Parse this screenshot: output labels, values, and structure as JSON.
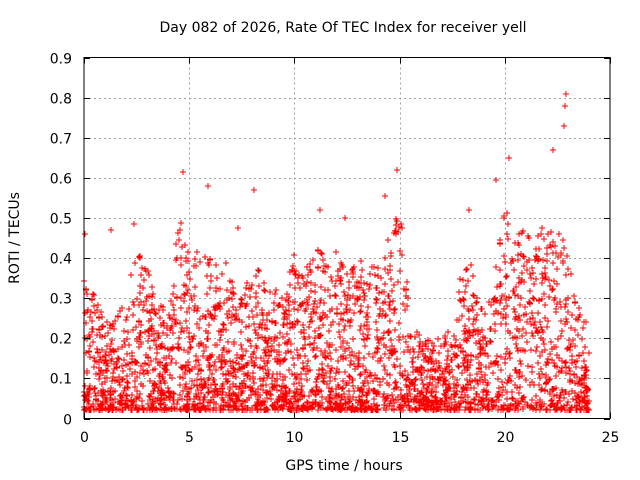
{
  "chart_data": {
    "type": "scatter",
    "title": "Day 082 of 2026, Rate Of TEC Index for receiver yell",
    "xlabel": "GPS time / hours",
    "ylabel": "ROTI / TECUs",
    "xlim": [
      0,
      25
    ],
    "ylim": [
      0,
      0.9
    ],
    "xticks": [
      0,
      5,
      10,
      15,
      20,
      25
    ],
    "yticks": [
      0,
      0.1,
      0.2,
      0.3,
      0.4,
      0.5,
      0.6,
      0.7,
      0.8,
      0.9
    ],
    "xtick_labels": [
      "0",
      "5",
      "10",
      "15",
      "20",
      "25"
    ],
    "ytick_labels": [
      "0",
      "0.1",
      "0.2",
      "0.3",
      "0.4",
      "0.5",
      "0.6",
      "0.7",
      "0.8",
      "0.9"
    ],
    "grid": true,
    "marker": "+",
    "series": [
      {
        "name": "ROTI",
        "color": "#ff0000",
        "envelope": {
          "hours": [
            0,
            0.5,
            1,
            1.5,
            2,
            2.5,
            3,
            3.5,
            4,
            4.5,
            5,
            5.5,
            6,
            6.5,
            7,
            7.5,
            8,
            8.5,
            9,
            9.5,
            10,
            10.5,
            11,
            11.5,
            12,
            12.5,
            13,
            13.5,
            14,
            14.5,
            15,
            15.5,
            16,
            16.5,
            17,
            17.5,
            18,
            18.5,
            19,
            19.5,
            20,
            20.5,
            21,
            21.5,
            22,
            22.5,
            23,
            23.5,
            24
          ],
          "upper_roti": [
            0.38,
            0.3,
            0.26,
            0.28,
            0.3,
            0.42,
            0.38,
            0.33,
            0.25,
            0.5,
            0.45,
            0.42,
            0.4,
            0.38,
            0.4,
            0.3,
            0.41,
            0.35,
            0.33,
            0.3,
            0.42,
            0.38,
            0.45,
            0.4,
            0.43,
            0.37,
            0.39,
            0.4,
            0.38,
            0.46,
            0.55,
            0.25,
            0.2,
            0.2,
            0.2,
            0.24,
            0.4,
            0.38,
            0.25,
            0.35,
            0.55,
            0.45,
            0.48,
            0.45,
            0.5,
            0.48,
            0.42,
            0.3,
            0.22
          ]
        },
        "outliers": [
          {
            "x": 4.7,
            "y": 0.615
          },
          {
            "x": 5.9,
            "y": 0.58
          },
          {
            "x": 8.1,
            "y": 0.57
          },
          {
            "x": 20.2,
            "y": 0.65
          },
          {
            "x": 22.3,
            "y": 0.67
          },
          {
            "x": 22.9,
            "y": 0.81
          },
          {
            "x": 22.85,
            "y": 0.78
          },
          {
            "x": 22.8,
            "y": 0.73
          },
          {
            "x": 19.6,
            "y": 0.595
          },
          {
            "x": 14.9,
            "y": 0.62
          },
          {
            "x": 0.05,
            "y": 0.46
          },
          {
            "x": 1.3,
            "y": 0.47
          },
          {
            "x": 2.4,
            "y": 0.485
          },
          {
            "x": 7.3,
            "y": 0.475
          },
          {
            "x": 11.2,
            "y": 0.52
          },
          {
            "x": 12.4,
            "y": 0.5
          },
          {
            "x": 14.3,
            "y": 0.555
          },
          {
            "x": 18.3,
            "y": 0.52
          }
        ]
      }
    ]
  }
}
